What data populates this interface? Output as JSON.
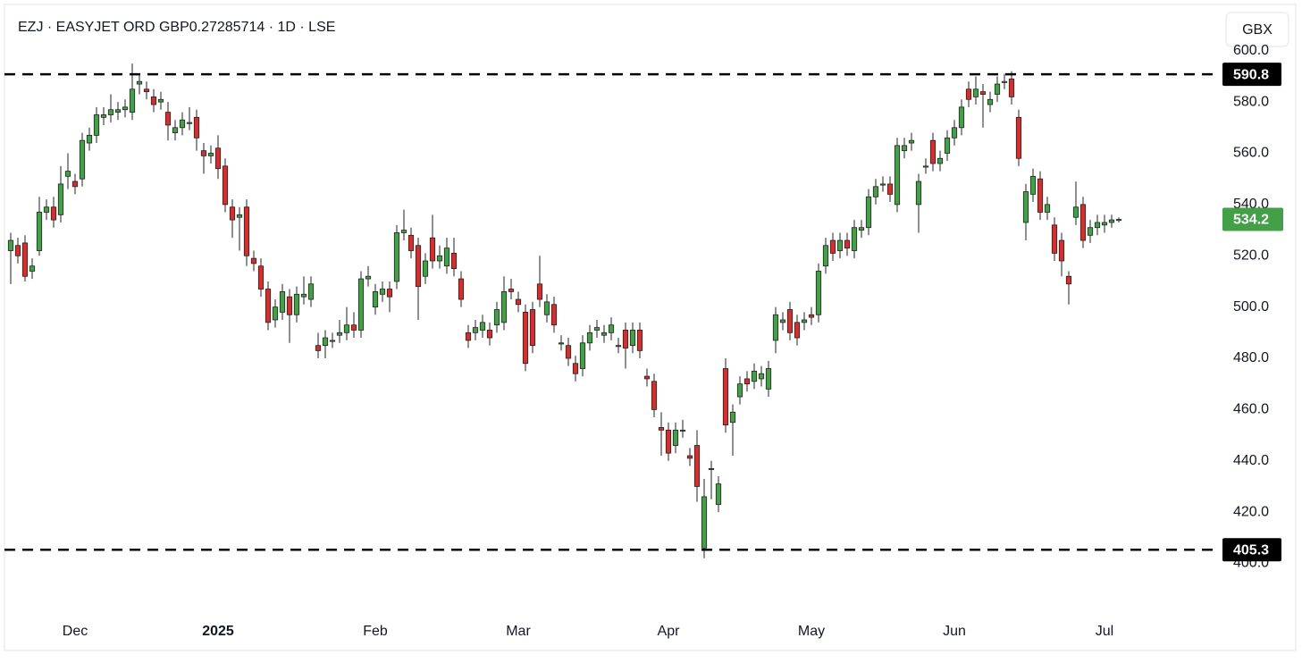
{
  "chart_data": {
    "type": "candlestick",
    "title": "EZJ · EASYJET ORD GBP0.27285714 · 1D · LSE",
    "currency": "GBX",
    "categories": [
      null,
      null,
      null,
      null,
      null,
      null,
      null,
      null,
      null,
      "Dec",
      null,
      null,
      null,
      null,
      null,
      null,
      null,
      null,
      null,
      null,
      null,
      null,
      null,
      null,
      null,
      null,
      null,
      null,
      null,
      "2025",
      null,
      null,
      null,
      null,
      null,
      null,
      null,
      null,
      null,
      null,
      null,
      null,
      null,
      null,
      null,
      null,
      null,
      null,
      null,
      null,
      null,
      "Feb",
      null,
      null,
      null,
      null,
      null,
      null,
      null,
      null,
      null,
      null,
      null,
      null,
      null,
      null,
      null,
      null,
      null,
      null,
      null,
      "Mar",
      null,
      null,
      null,
      null,
      null,
      null,
      null,
      null,
      null,
      null,
      null,
      null,
      null,
      null,
      null,
      null,
      null,
      null,
      null,
      null,
      "Apr",
      null,
      null,
      null,
      null,
      null,
      null,
      null,
      null,
      null,
      null,
      null,
      null,
      null,
      null,
      null,
      null,
      null,
      null,
      null,
      "May",
      null,
      null,
      null,
      null,
      null,
      null,
      null,
      null,
      null,
      null,
      null,
      null,
      null,
      null,
      null,
      null,
      null,
      null,
      null,
      "Jun",
      null,
      null,
      null,
      null,
      null,
      null,
      null,
      null,
      null,
      null,
      null,
      null,
      null,
      null,
      null,
      null,
      null,
      null,
      null,
      null,
      "Jul",
      null,
      null
    ],
    "open": [
      522,
      524,
      525,
      514,
      522,
      537,
      539,
      536,
      551,
      549,
      550,
      564,
      567,
      574,
      575,
      576,
      577,
      576,
      587,
      585,
      582,
      580,
      576,
      568,
      570,
      572,
      574,
      561,
      559,
      562,
      555,
      539,
      535,
      539,
      519,
      516,
      507,
      495,
      498,
      504,
      497,
      504,
      503,
      485,
      485,
      487,
      489,
      490,
      493,
      491,
      511,
      500,
      505,
      507,
      510,
      529,
      528,
      524,
      512,
      527,
      518,
      516,
      521,
      511,
      490,
      490,
      491,
      491,
      493,
      494,
      507,
      503,
      498,
      499,
      509,
      497,
      501,
      486,
      485,
      478,
      476,
      486,
      491,
      489,
      490,
      485,
      491,
      485,
      491,
      473,
      471,
      453,
      452,
      446,
      452,
      442,
      446,
      406,
      437,
      423,
      476,
      455,
      465,
      472,
      471,
      472,
      468,
      487,
      494,
      499,
      494,
      494,
      497,
      497,
      516,
      526,
      522,
      526,
      522,
      530,
      531,
      543,
      548,
      548,
      540,
      561,
      564,
      540,
      555,
      565,
      556,
      560,
      566,
      570,
      585,
      582,
      584,
      579,
      583,
      588,
      589,
      574,
      533,
      544,
      550,
      537,
      532,
      526,
      512,
      535,
      540,
      528,
      531,
      532,
      533,
      534
    ],
    "high": [
      529,
      527,
      528,
      519,
      543,
      542,
      543,
      555,
      560,
      552,
      568,
      570,
      578,
      578,
      583,
      580,
      581,
      595,
      591,
      588,
      585,
      584,
      580,
      573,
      576,
      578,
      577,
      564,
      563,
      567,
      558,
      542,
      539,
      542,
      522,
      519,
      510,
      503,
      509,
      507,
      508,
      512,
      512,
      490,
      491,
      490,
      495,
      500,
      498,
      514,
      516,
      509,
      510,
      510,
      532,
      538,
      531,
      527,
      521,
      536,
      524,
      527,
      527,
      514,
      493,
      495,
      497,
      494,
      502,
      512,
      511,
      506,
      501,
      502,
      520,
      505,
      504,
      489,
      488,
      481,
      489,
      493,
      495,
      493,
      496,
      488,
      494,
      494,
      494,
      476,
      474,
      459,
      455,
      455,
      456,
      445,
      452,
      433,
      440,
      434,
      480,
      462,
      473,
      475,
      478,
      477,
      479,
      500,
      498,
      502,
      497,
      498,
      500,
      517,
      527,
      529,
      529,
      529,
      534,
      534,
      546,
      550,
      551,
      551,
      566,
      566,
      568,
      552,
      558,
      568,
      561,
      569,
      573,
      581,
      588,
      590,
      587,
      584,
      590,
      591,
      592,
      577,
      548,
      554,
      553,
      543,
      535,
      529,
      514,
      549,
      543,
      534,
      536,
      536,
      536,
      535
    ],
    "low": [
      509,
      517,
      510,
      511,
      520,
      534,
      531,
      533,
      546,
      544,
      547,
      561,
      564,
      571,
      572,
      573,
      574,
      573,
      583,
      581,
      576,
      577,
      565,
      565,
      567,
      569,
      561,
      552,
      556,
      550,
      537,
      527,
      522,
      516,
      514,
      504,
      491,
      492,
      495,
      486,
      494,
      501,
      500,
      480,
      480,
      484,
      486,
      487,
      488,
      488,
      508,
      497,
      502,
      498,
      507,
      526,
      519,
      495,
      509,
      515,
      515,
      513,
      512,
      500,
      484,
      487,
      488,
      485,
      490,
      491,
      503,
      498,
      475,
      482,
      500,
      494,
      490,
      483,
      477,
      471,
      473,
      483,
      488,
      486,
      487,
      482,
      476,
      482,
      480,
      469,
      457,
      442,
      440,
      443,
      449,
      438,
      424,
      402,
      425,
      420,
      451,
      442,
      462,
      467,
      468,
      469,
      465,
      482,
      491,
      487,
      485,
      491,
      493,
      494,
      513,
      518,
      519,
      520,
      519,
      527,
      528,
      540,
      545,
      541,
      537,
      558,
      561,
      529,
      552,
      553,
      553,
      557,
      563,
      567,
      578,
      579,
      570,
      576,
      580,
      585,
      579,
      555,
      526,
      541,
      534,
      534,
      518,
      512,
      501,
      532,
      523,
      525,
      528,
      529,
      531,
      533
    ],
    "close": [
      526,
      520,
      512,
      516,
      537,
      539,
      534,
      548,
      553,
      547,
      565,
      567,
      575,
      575,
      577,
      577,
      578,
      585,
      588,
      584,
      579,
      581,
      571,
      570,
      573,
      572,
      566,
      559,
      560,
      554,
      540,
      534,
      536,
      520,
      517,
      507,
      494,
      500,
      506,
      497,
      505,
      505,
      509,
      483,
      488,
      487,
      490,
      493,
      491,
      511,
      512,
      506,
      507,
      504,
      529,
      530,
      522,
      508,
      518,
      518,
      520,
      523,
      515,
      503,
      487,
      492,
      494,
      488,
      499,
      506,
      506,
      501,
      478,
      485,
      503,
      502,
      493,
      486,
      480,
      474,
      486,
      490,
      492,
      490,
      493,
      485,
      484,
      491,
      483,
      472,
      460,
      452,
      443,
      452,
      452,
      441,
      430,
      426,
      437,
      431,
      454,
      459,
      470,
      470,
      475,
      474,
      476,
      497,
      495,
      490,
      488,
      495,
      496,
      514,
      524,
      521,
      526,
      523,
      531,
      531,
      543,
      547,
      548,
      544,
      563,
      563,
      565,
      549,
      555,
      556,
      558,
      566,
      570,
      578,
      581,
      585,
      583,
      581,
      587,
      588,
      582,
      558,
      545,
      551,
      537,
      540,
      521,
      518,
      509,
      539,
      526,
      531,
      533,
      533,
      534,
      534.2
    ],
    "up_color": "#43a047",
    "down_color": "#d32f2f",
    "hlines": [
      590.8,
      405.3
    ],
    "ylim": [
      381,
      617
    ],
    "yticks": [
      {
        "value": 400,
        "label": "400.0"
      },
      {
        "value": 420,
        "label": "420.0"
      },
      {
        "value": 440,
        "label": "440.0"
      },
      {
        "value": 460,
        "label": "460.0"
      },
      {
        "value": 480,
        "label": "480.0"
      },
      {
        "value": 500,
        "label": "500.0"
      },
      {
        "value": 520,
        "label": "520.0"
      },
      {
        "value": 540,
        "label": "540.0"
      },
      {
        "value": 560,
        "label": "560.0"
      },
      {
        "value": 580,
        "label": "580.0"
      },
      {
        "value": 600,
        "label": "600.0"
      }
    ],
    "grid": false
  }
}
